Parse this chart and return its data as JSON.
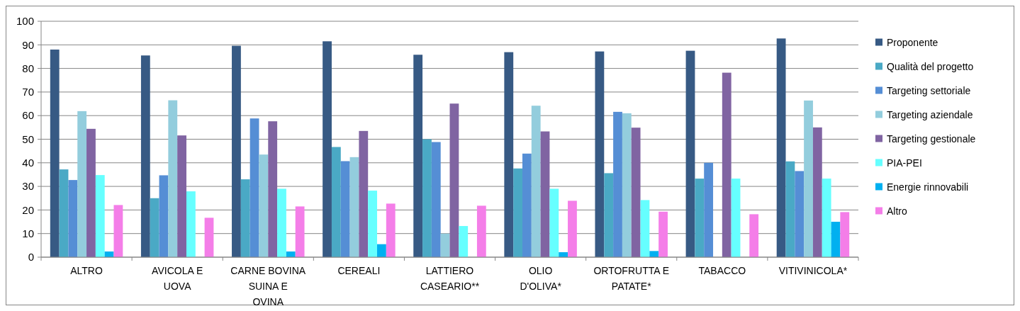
{
  "chart_data": {
    "type": "bar",
    "categories": [
      "ALTRO",
      "AVICOLA E UOVA",
      "CARNE BOVINA SUINA E OVINA",
      "CEREALI",
      "LATTIERO CASEARIO**",
      "OLIO D'OLIVA*",
      "ORTOFRUTTA E PATATE*",
      "TABACCO",
      "VITIVINICOLA*"
    ],
    "series": [
      {
        "name": "Proponente",
        "color": "#375a84",
        "values": [
          88,
          85.5,
          89.6,
          91.5,
          85.8,
          86.9,
          87.2,
          87.5,
          92.7
        ]
      },
      {
        "name": "Qualità del progetto",
        "color": "#4aa9c5",
        "values": [
          37.2,
          25,
          33,
          46.7,
          50,
          37.6,
          35.6,
          33.3,
          40.6
        ]
      },
      {
        "name": "Targeting settoriale",
        "color": "#558ed5",
        "values": [
          32.7,
          34.7,
          58.8,
          40.7,
          48.8,
          43.9,
          61.6,
          40,
          36.5
        ]
      },
      {
        "name": "Targeting aziendale",
        "color": "#93cddd",
        "values": [
          61.9,
          66.5,
          43.5,
          42.4,
          10,
          64.2,
          61,
          null,
          66.4
        ]
      },
      {
        "name": "Targeting gestionale",
        "color": "#8064a2",
        "values": [
          54.4,
          51.6,
          57.6,
          53.5,
          65.1,
          53.3,
          54.9,
          78.2,
          55
        ]
      },
      {
        "name": "PIA-PEI",
        "color": "#66ffff",
        "values": [
          34.8,
          27.9,
          29,
          28.2,
          13.2,
          29,
          24.2,
          33.3,
          33.3
        ]
      },
      {
        "name": "Energie rinnovabili",
        "color": "#00b0f0",
        "values": [
          2.4,
          null,
          2.4,
          5.5,
          null,
          2.1,
          2.6,
          null,
          15
        ]
      },
      {
        "name": "Altro",
        "color": "#f47ee8",
        "values": [
          22.1,
          16.7,
          21.5,
          22.7,
          21.8,
          23.9,
          19.3,
          18.2,
          19.1
        ]
      }
    ],
    "ylim": [
      0,
      100
    ],
    "yticks": [
      0,
      10,
      20,
      30,
      40,
      50,
      60,
      70,
      80,
      90,
      100
    ],
    "grid": "y",
    "legend": "right"
  }
}
